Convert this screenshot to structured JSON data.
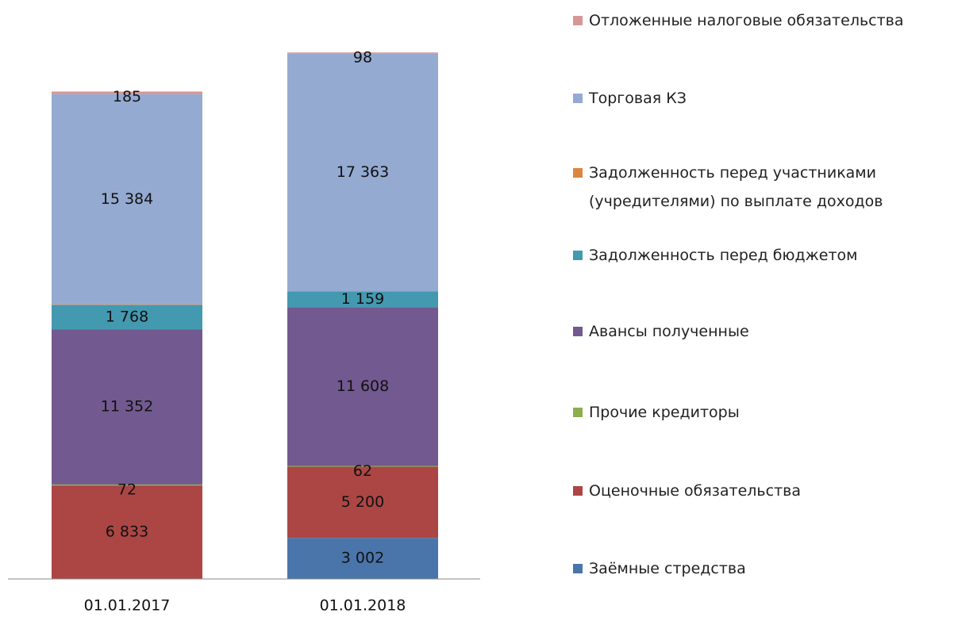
{
  "chart_data": {
    "type": "stacked_bar",
    "categories": [
      "01.01.2017",
      "01.01.2018"
    ],
    "ylim": [
      0,
      38500
    ],
    "series": [
      {
        "name": "Заёмные стредства",
        "color": "#4a75ab",
        "values": [
          0,
          3002
        ],
        "value_labels": [
          null,
          "3 002"
        ]
      },
      {
        "name": "Оценочные обязательства",
        "color": "#ab4644",
        "values": [
          6833,
          5200
        ],
        "value_labels": [
          "6 833",
          "5 200"
        ]
      },
      {
        "name": "Прочие кредиторы",
        "color": "#8cae4c",
        "values": [
          72,
          62
        ],
        "value_labels": [
          "72",
          "62"
        ]
      },
      {
        "name": "Авансы полученные",
        "color": "#72598f",
        "values": [
          11352,
          11608
        ],
        "value_labels": [
          "11 352",
          "11 608"
        ]
      },
      {
        "name": "Задолженность перед бюджетом",
        "color": "#4399b0",
        "values": [
          1768,
          1159
        ],
        "value_labels": [
          "1 768",
          "1 159"
        ]
      },
      {
        "name": "Задолженность перед участниками (учредителями) по выплате доходов",
        "color": "#db853e",
        "values": [
          40,
          0
        ],
        "value_labels": [
          null,
          null
        ]
      },
      {
        "name": "Торговая КЗ",
        "color": "#94aad1",
        "values": [
          15384,
          17363
        ],
        "value_labels": [
          "15 384",
          "17 363"
        ]
      },
      {
        "name": "Отложенные налоговые обязательства",
        "color": "#d79695",
        "values": [
          185,
          98
        ],
        "value_labels": [
          "185",
          "98"
        ]
      }
    ]
  }
}
